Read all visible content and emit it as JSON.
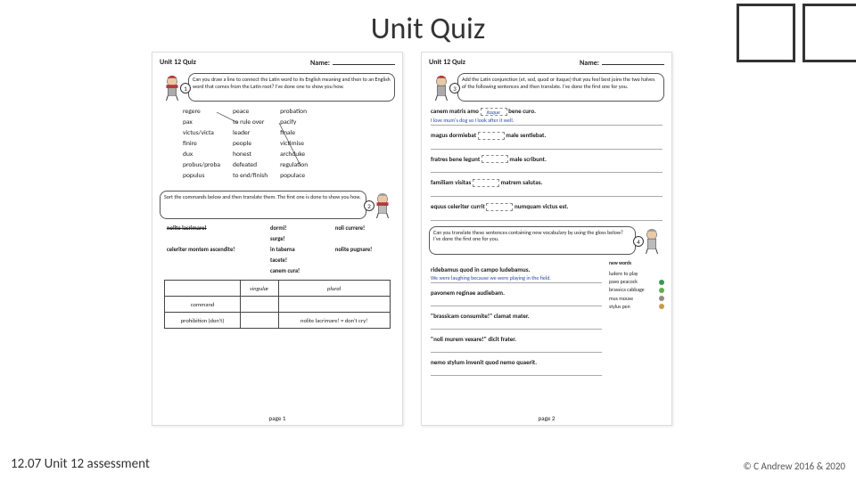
{
  "title": "Unit Quiz",
  "footer_left": "12.07 Unit 12 assessment",
  "footer_right": "© C Andrew 2016 & 2020",
  "page1": {
    "header_title": "Unit 12 Quiz",
    "header_name_label": "Name:",
    "page_label": "page 1",
    "bubble1": {
      "num": "1",
      "text": "Can you draw a line to connect the Latin word to its English meaning and then to an English word that comes from the Latin root? I've done one to show you how."
    },
    "latin_col": [
      "regere",
      "pax",
      "victus/victa",
      "finire",
      "dux",
      "probus/proba",
      "populus"
    ],
    "english_col": [
      "peace",
      "to rule over",
      "leader",
      "people",
      "honest",
      "defeated",
      "to end/finish"
    ],
    "deriv_col": [
      "probation",
      "pacify",
      "finale",
      "victimise",
      "archduke",
      "regulation",
      "populace"
    ],
    "bubble2": {
      "num": "2",
      "text": "Sort the commands below and then translate them. The first one is done to show you how."
    },
    "commands": [
      "nolite lacrimare!",
      "dormi!",
      "noli currere!",
      "surge!",
      "in taberna",
      "nolite pugnare!",
      "celeriter montem ascendite!",
      "tacete!",
      "canem cura!"
    ],
    "table_headers": [
      "",
      "singular",
      "plural"
    ],
    "table_rows": [
      [
        "command",
        "",
        ""
      ],
      [
        "prohibition (don't)",
        "",
        "nolite lacrimare! = don't cry!"
      ]
    ]
  },
  "page2": {
    "header_title": "Unit 12 Quiz",
    "header_name_label": "Name:",
    "page_label": "page 2",
    "bubble3": {
      "num": "3",
      "text": "Add the Latin conjunction (et, sed, quod or itaque) that you feel best joins the two halves of the following sentences and then translate. I've done the first one for you."
    },
    "sentences3": [
      {
        "pre": "canem matris amo",
        "box": "itaque",
        "post": "bene curo.",
        "translation": "I love mum's dog so I look after it well."
      },
      {
        "pre": "magus dormiebat",
        "box": "",
        "post": "male sentiebat.",
        "translation": ""
      },
      {
        "pre": "fratres bene legunt",
        "box": "",
        "post": "male scribunt.",
        "translation": ""
      },
      {
        "pre": "familiam visitas",
        "box": "",
        "post": "matrem salutas.",
        "translation": ""
      },
      {
        "pre": "equus celeriter currit",
        "box": "",
        "post": "numquam victus est.",
        "translation": ""
      }
    ],
    "bubble4": {
      "num": "4",
      "text": "Can you translate these sentences containing new vocabulary by using the gloss below? I've done the first one for you."
    },
    "sentences4": [
      {
        "text": "ridebamus quod in campo ludebamus.",
        "translation": "We were laughing because we were playing in the field."
      },
      {
        "text": "pavonem reginae audiebam.",
        "translation": ""
      },
      {
        "text": "\"brassicam consumite!\" clamat mater.",
        "translation": ""
      },
      {
        "text": "\"noli murem vexare!\" dicit frater.",
        "translation": ""
      },
      {
        "text": "nemo stylum invenit quod nemo quaerit.",
        "translation": ""
      }
    ],
    "gloss_title": "new words",
    "gloss": [
      {
        "term": "ludere to play",
        "color": ""
      },
      {
        "term": "pavo peacock",
        "color": "#3a9a4a"
      },
      {
        "term": "brassica cabbage",
        "color": "#5fb04a"
      },
      {
        "term": "mus mouse",
        "color": "#9a8a7a"
      },
      {
        "term": "stylus pen",
        "color": "#cc9944"
      }
    ]
  },
  "colors": {
    "link_blue": "#2a4ba8",
    "char_red": "#b03a3a",
    "char_grey": "#888888"
  }
}
